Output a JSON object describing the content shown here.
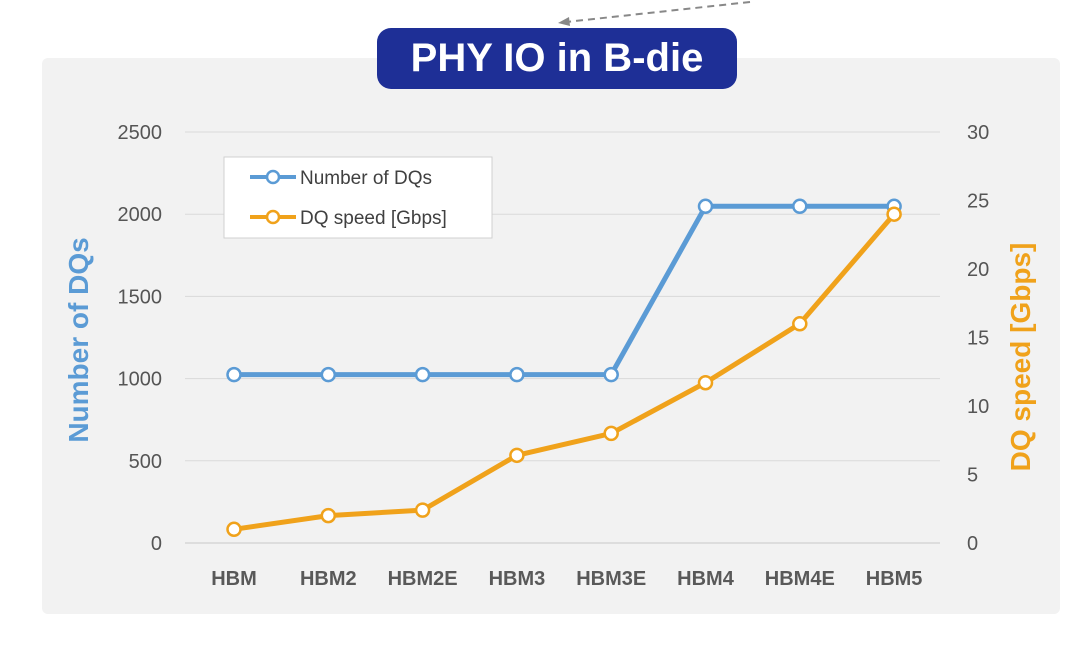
{
  "title": "PHY IO in B-die",
  "colors": {
    "dq_count": "#5b9bd5",
    "dq_speed": "#f0a21b",
    "title_bg": "#1e2f96",
    "panel_bg": "#f2f2f2"
  },
  "chart_data": {
    "type": "line",
    "categories": [
      "HBM",
      "HBM2",
      "HBM2E",
      "HBM3",
      "HBM3E",
      "HBM4",
      "HBM4E",
      "HBM5"
    ],
    "series": [
      {
        "name": "Number of DQs",
        "axis": "left",
        "values": [
          1024,
          1024,
          1024,
          1024,
          1024,
          2048,
          2048,
          2048
        ]
      },
      {
        "name": "DQ speed [Gbps]",
        "axis": "right",
        "values": [
          1,
          2,
          2.4,
          6.4,
          8,
          11.7,
          16,
          24
        ]
      }
    ],
    "ylabel": "Number of DQs",
    "y2label": "DQ speed [Gbps]",
    "ylim": [
      0,
      2500
    ],
    "y2lim": [
      0,
      30
    ],
    "yticks": [
      "0",
      "500",
      "1000",
      "1500",
      "2000",
      "2500"
    ],
    "y2ticks": [
      "0",
      "5",
      "10",
      "15",
      "20",
      "25",
      "30"
    ],
    "grid": true,
    "legend": "top-left"
  }
}
